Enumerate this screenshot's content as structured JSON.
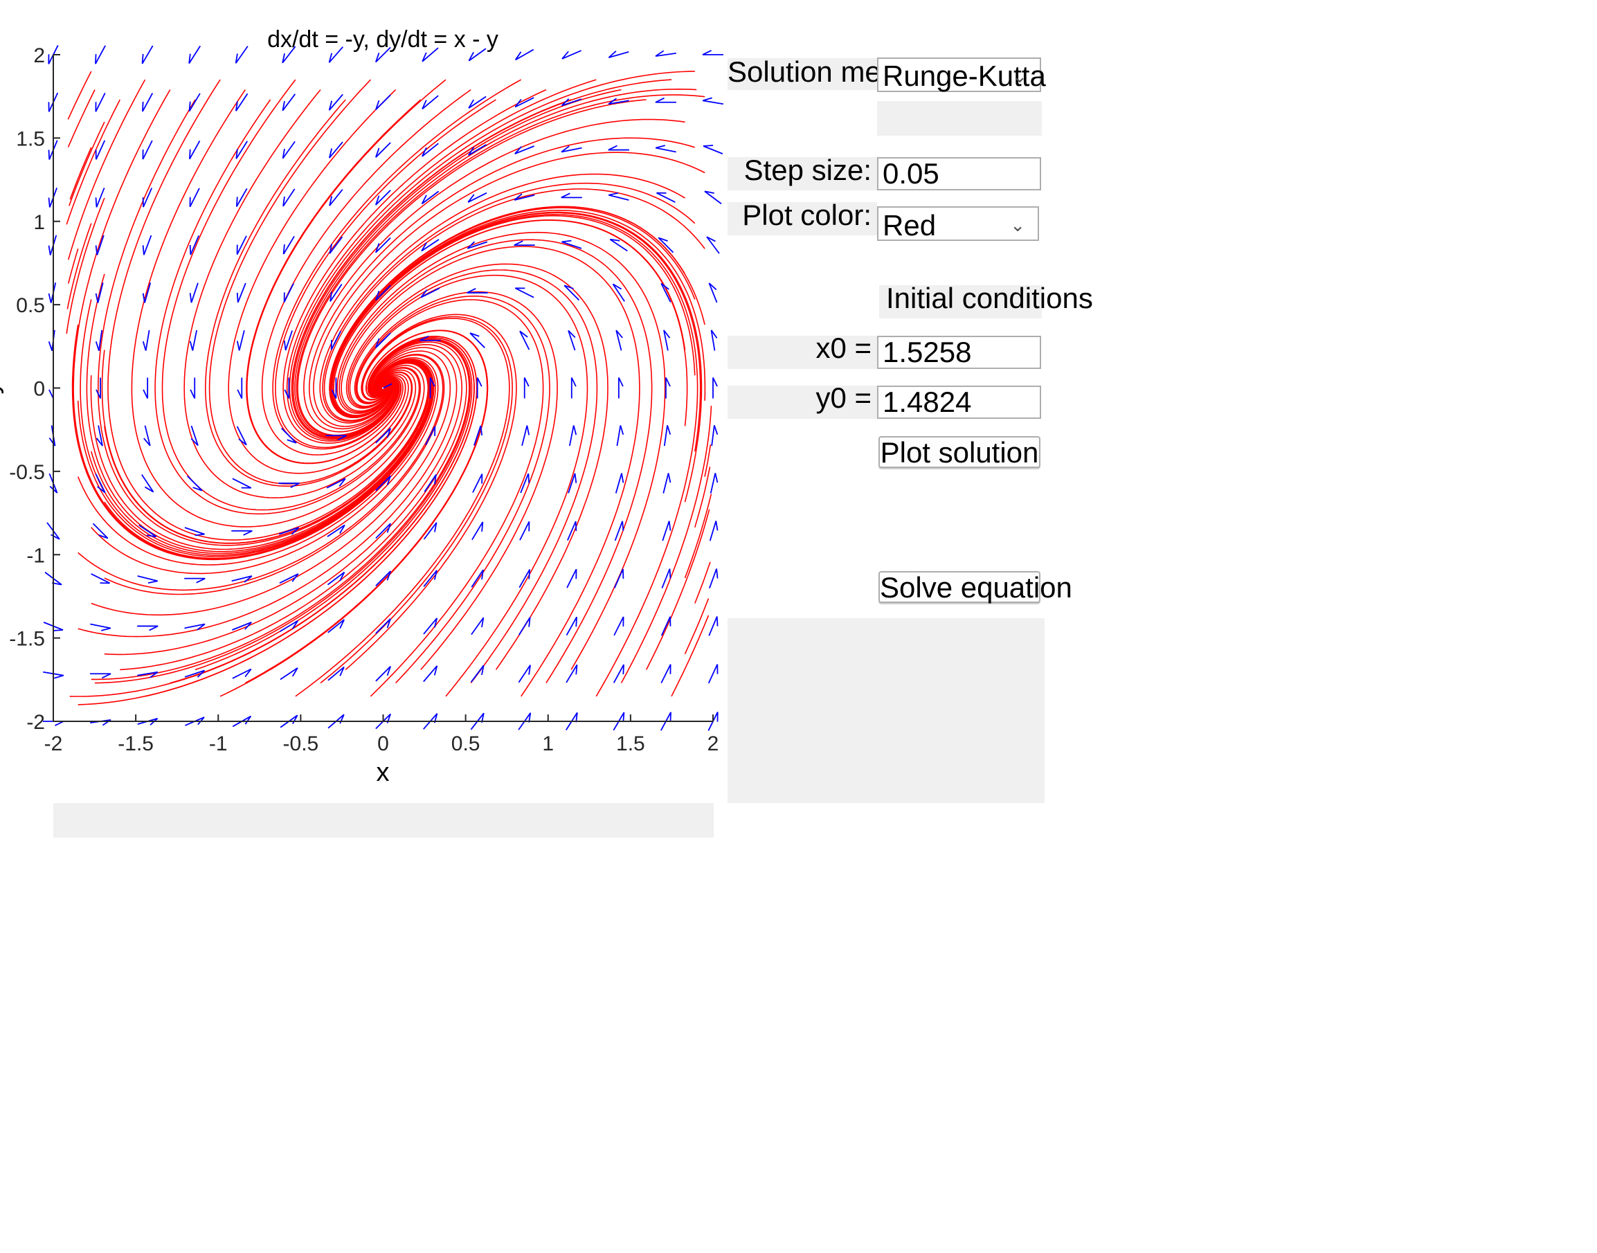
{
  "plot": {
    "title": "dx/dt = -y, dy/dt = x - y",
    "xlabel": "x",
    "ylabel": "y",
    "xlim": [
      -2,
      2
    ],
    "ylim": [
      -2,
      2
    ],
    "xticks": [
      "-2",
      "-1.5",
      "-1",
      "-0.5",
      "0",
      "0.5",
      "1",
      "1.5",
      "2"
    ],
    "yticks": [
      "2",
      "1.5",
      "1",
      "0.5",
      "0",
      "-0.5",
      "-1",
      "-1.5",
      "-2"
    ],
    "vector_color": "#0000ff",
    "curve_color": "#ff0000"
  },
  "controls": {
    "solution_method_label": "Solution method:",
    "solution_method_value": "Runge-Kutta",
    "step_size_label": "Step size:",
    "step_size_value": "0.05",
    "plot_color_label": "Plot color:",
    "plot_color_value": "Red",
    "initial_conditions_label": "Initial conditions",
    "x0_label": "x0 =",
    "x0_value": "1.5258",
    "y0_label": "y0 =",
    "y0_value": "1.4824",
    "plot_solution_label": "Plot solution",
    "solve_equation_label": "Solve equation"
  },
  "icons": {
    "dropdown": "chevron-down-icon"
  }
}
